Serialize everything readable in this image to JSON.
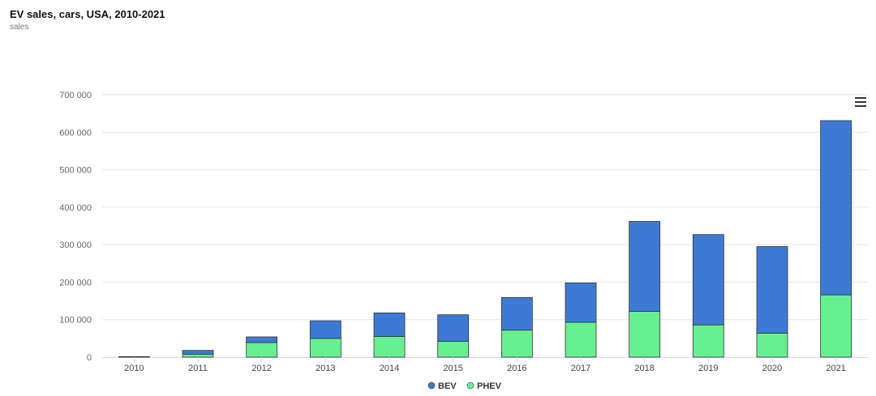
{
  "chart_data": {
    "type": "bar",
    "stacked": true,
    "title": "EV sales, cars, USA, 2010-2021",
    "subtitle": "sales",
    "xlabel": "",
    "ylabel": "",
    "ylim": [
      0,
      700000
    ],
    "yticks": [
      0,
      100000,
      200000,
      300000,
      400000,
      500000,
      600000,
      700000
    ],
    "ytick_labels": [
      "0",
      "100 000",
      "200 000",
      "300 000",
      "400 000",
      "500 000",
      "600 000",
      "700 000"
    ],
    "grid": true,
    "legend_position": "bottom-center",
    "categories": [
      "2010",
      "2011",
      "2012",
      "2013",
      "2014",
      "2015",
      "2016",
      "2017",
      "2018",
      "2019",
      "2020",
      "2021"
    ],
    "series": [
      {
        "name": "PHEV",
        "color": "#66f08f",
        "values": [
          300,
          8000,
          39000,
          50000,
          55000,
          42000,
          72000,
          93000,
          122000,
          86000,
          64000,
          166000
        ]
      },
      {
        "name": "BEV",
        "color": "#3d7ad6",
        "values": [
          1200,
          10000,
          15000,
          47000,
          63000,
          71000,
          87000,
          105000,
          240000,
          241000,
          231000,
          465000
        ]
      }
    ]
  },
  "legend_order": [
    "BEV",
    "PHEV"
  ],
  "menu": {
    "icon": "hamburger-menu-icon"
  }
}
